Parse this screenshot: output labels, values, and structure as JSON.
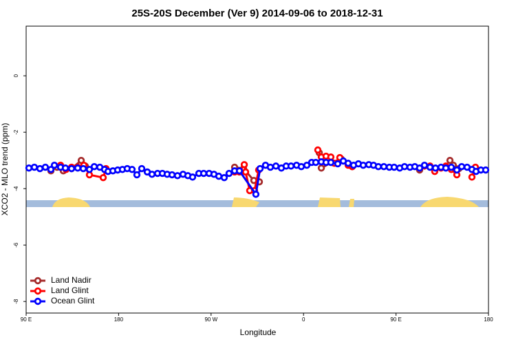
{
  "chart_data": {
    "type": "line",
    "title": "25S-20S December (Ver 9)   2014-09-06 to 2018-12-31",
    "xlabel": "Longitude",
    "ylabel": "XCO2 - MLO trend (ppm)",
    "xlim": [
      90,
      540
    ],
    "ylim": [
      -8.41,
      1.76
    ],
    "xticks": [
      {
        "value": 90,
        "label": "90 E"
      },
      180,
      {
        "value": 270,
        "label": "90 W"
      },
      {
        "value": 360,
        "label": "0"
      },
      {
        "value": 450,
        "label": "90 E"
      },
      {
        "value": 540,
        "label": "180"
      }
    ],
    "yticks": [
      0,
      -2,
      -4,
      -6,
      -8
    ],
    "legend": "bottom-left",
    "series": [
      {
        "name": "Land Nadir",
        "color": "#a52a2a",
        "x": [
          114.1,
          120.1,
          126.2,
          134.2,
          143.6,
          147.6,
          null,
          292.9,
          301.6,
          311.6,
          317.0,
          null,
          375.3,
          377.3,
          387.3,
          396.7,
          407.4,
          null,
          473.0,
          null,
          502.5,
          505.8,
          511.2
        ],
        "values": [
          -3.37,
          -3.24,
          -3.37,
          -3.29,
          -3.0,
          -3.2,
          null,
          -3.24,
          -3.29,
          -3.71,
          -3.76,
          null,
          -2.73,
          -3.27,
          -3.07,
          -2.95,
          -3.22,
          null,
          -3.34,
          null,
          -3.0,
          -3.17,
          -3.29
        ]
      },
      {
        "name": "Land Glint",
        "color": "#ff0000",
        "x": [
          123.5,
          128.8,
          134.2,
          140.2,
          146.2,
          151.6,
          165.0,
          167.7,
          null,
          292.9,
          297.6,
          302.3,
          303.6,
          307.6,
          312.3,
          316.3,
          null,
          373.9,
          377.3,
          381.9,
          386.6,
          390.0,
          395.3,
          403.4,
          407.4,
          null,
          477.7,
          483.1,
          487.7,
          493.8,
          498.5,
          503.8,
          509.2,
          null,
          523.9,
          527.3
        ],
        "values": [
          -3.17,
          -3.32,
          -3.24,
          -3.24,
          -3.17,
          -3.51,
          -3.61,
          -3.29,
          null,
          -3.41,
          -3.41,
          -3.15,
          -3.41,
          -4.07,
          -4.07,
          -3.34,
          null,
          -2.63,
          -2.88,
          -2.85,
          -2.88,
          -3.1,
          -2.9,
          -3.17,
          -3.22,
          null,
          -3.2,
          -3.2,
          -3.39,
          -3.27,
          -3.2,
          -3.32,
          -3.51,
          null,
          -3.59,
          -3.24
        ]
      },
      {
        "name": "Ocean Glint",
        "color": "#0000ff",
        "x": [
          92.7,
          98.0,
          103.4,
          108.7,
          114.1,
          117.5,
          123.5,
          128.2,
          134.2,
          140.2,
          145.6,
          151.6,
          156.3,
          161.7,
          166.3,
          169.7,
          174.4,
          179.1,
          183.7,
          188.4,
          193.1,
          197.8,
          202.5,
          207.9,
          212.5,
          217.9,
          222.6,
          227.3,
          232.0,
          237.3,
          242.7,
          247.4,
          252.0,
          258.1,
          262.8,
          268.1,
          272.8,
          277.5,
          282.8,
          287.5,
          292.9,
          297.6,
          313.6,
          317.7,
          323.0,
          327.7,
          333.1,
          338.4,
          343.1,
          347.8,
          353.2,
          357.8,
          363.2,
          367.9,
          371.9,
          377.3,
          381.9,
          386.6,
          393.3,
          398.7,
          403.4,
          408.7,
          413.4,
          418.1,
          423.5,
          428.1,
          432.8,
          438.2,
          443.5,
          448.2,
          453.6,
          458.3,
          463.6,
          468.3,
          473.0,
          477.7,
          483.1,
          488.4,
          493.8,
          498.5,
          503.8,
          509.2,
          513.9,
          519.2,
          523.9,
          527.9,
          532.6,
          537.3
        ],
        "values": [
          -3.27,
          -3.24,
          -3.29,
          -3.24,
          -3.32,
          -3.17,
          -3.24,
          -3.27,
          -3.29,
          -3.27,
          -3.29,
          -3.32,
          -3.22,
          -3.24,
          -3.32,
          -3.39,
          -3.37,
          -3.34,
          -3.32,
          -3.29,
          -3.32,
          -3.51,
          -3.29,
          -3.41,
          -3.49,
          -3.46,
          -3.46,
          -3.49,
          -3.51,
          -3.54,
          -3.49,
          -3.54,
          -3.59,
          -3.46,
          -3.46,
          -3.46,
          -3.49,
          -3.56,
          -3.61,
          -3.46,
          -3.37,
          -3.37,
          -4.2,
          -3.29,
          -3.17,
          -3.24,
          -3.2,
          -3.27,
          -3.2,
          -3.2,
          -3.17,
          -3.22,
          -3.17,
          -3.07,
          -3.07,
          -3.05,
          -3.07,
          -3.07,
          -3.12,
          -3.02,
          -3.1,
          -3.17,
          -3.12,
          -3.17,
          -3.15,
          -3.17,
          -3.22,
          -3.22,
          -3.24,
          -3.24,
          -3.27,
          -3.22,
          -3.24,
          -3.22,
          -3.27,
          -3.17,
          -3.24,
          -3.27,
          -3.24,
          -3.27,
          -3.24,
          -3.34,
          -3.22,
          -3.24,
          -3.32,
          -3.39,
          -3.34,
          -3.34
        ]
      }
    ]
  }
}
